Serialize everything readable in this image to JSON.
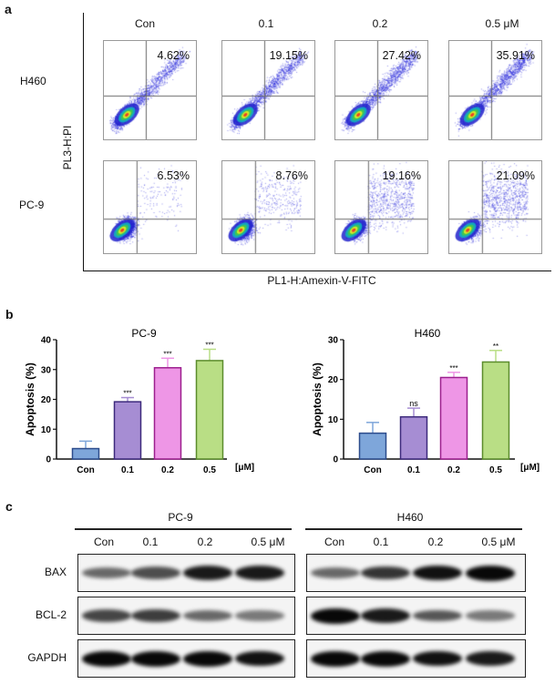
{
  "panel_labels": {
    "a": "a",
    "b": "b",
    "c": "c"
  },
  "flow": {
    "y_axis_label": "PL3-H:PI",
    "x_axis_label": "PL1-H:Amexin-V-FITC",
    "columns": [
      "Con",
      "0.1",
      "0.2",
      "0.5 μM"
    ],
    "rows": [
      {
        "label": "H460",
        "percentages": [
          "4.62%",
          "19.15%",
          "27.42%",
          "35.91%"
        ]
      },
      {
        "label": "PC-9",
        "percentages": [
          "6.53%",
          "8.76%",
          "19.16%",
          "21.09%"
        ]
      }
    ]
  },
  "chart_data": [
    {
      "type": "bar",
      "title": "PC-9",
      "ylabel": "Apoptosis (%)",
      "xunit": "[μM]",
      "categories": [
        "Con",
        "0.1",
        "0.2",
        "0.5"
      ],
      "values": [
        3.5,
        19.2,
        30.6,
        33.0
      ],
      "error_upper": [
        6.0,
        20.6,
        33.8,
        36.8
      ],
      "significance": [
        "",
        "***",
        "***",
        "***"
      ],
      "ylim": [
        0,
        40
      ],
      "yticks": [
        "0",
        "10",
        "20",
        "30",
        "40"
      ],
      "grid": false,
      "fill_colors": [
        "#7ea6da",
        "#a68dd3",
        "#ee96e6",
        "#b9de85"
      ],
      "edge_colors": [
        "#2c4c8c",
        "#3d2a7c",
        "#9c1f8e",
        "#5b8c2c"
      ]
    },
    {
      "type": "bar",
      "title": "H460",
      "ylabel": "Apoptosis (%)",
      "xunit": "[μM]",
      "categories": [
        "Con",
        "0.1",
        "0.2",
        "0.5"
      ],
      "values": [
        6.5,
        10.6,
        20.5,
        24.4
      ],
      "error_upper": [
        9.2,
        12.8,
        21.8,
        27.3
      ],
      "significance": [
        "",
        "ns",
        "***",
        "**"
      ],
      "ylim": [
        0,
        30
      ],
      "yticks": [
        "0",
        "10",
        "20",
        "30"
      ],
      "grid": false,
      "fill_colors": [
        "#7ea6da",
        "#a68dd3",
        "#ee96e6",
        "#b9de85"
      ],
      "edge_colors": [
        "#2c4c8c",
        "#3d2a7c",
        "#9c1f8e",
        "#5b8c2c"
      ]
    }
  ],
  "western": {
    "groups": [
      {
        "title": "PC-9",
        "lanes": [
          "Con",
          "0.1",
          "0.2",
          "0.5 μM"
        ],
        "band_intensity": {
          "BAX": [
            0.45,
            0.6,
            0.9,
            0.9
          ],
          "BCL-2": [
            0.65,
            0.7,
            0.45,
            0.35
          ],
          "GAPDH": [
            1,
            1,
            1,
            0.95
          ]
        }
      },
      {
        "title": "H460",
        "lanes": [
          "Con",
          "0.1",
          "0.2",
          "0.5 μM"
        ],
        "band_intensity": {
          "BAX": [
            0.45,
            0.75,
            0.95,
            1
          ],
          "BCL-2": [
            1,
            0.9,
            0.55,
            0.35
          ],
          "GAPDH": [
            1,
            1,
            0.95,
            0.9
          ]
        }
      }
    ],
    "proteins": [
      "BAX",
      "BCL-2",
      "GAPDH"
    ]
  }
}
